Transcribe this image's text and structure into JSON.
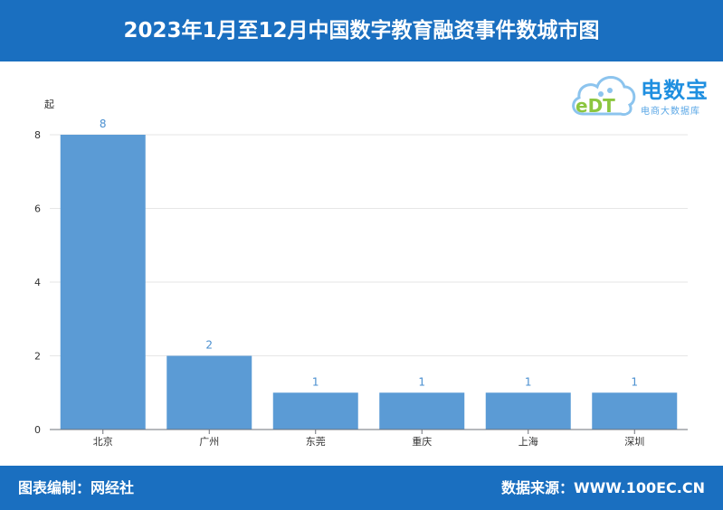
{
  "header": {
    "title": "2023年1月至12月中国数字教育融资事件数城市图"
  },
  "footer": {
    "left": "图表编制：网经社",
    "right": "数据来源：WWW.100EC.CN"
  },
  "logo": {
    "name": "电数宝",
    "subtitle": "电商大数据库",
    "mark": "eDT",
    "icon": "cloud-icon"
  },
  "colors": {
    "header_bg": "#1a6fc0",
    "bar": "#5b9bd5",
    "data_label": "#4a8fd0"
  },
  "chart_data": {
    "type": "bar",
    "ylabel": "起",
    "categories": [
      "北京",
      "广州",
      "东莞",
      "重庆",
      "上海",
      "深圳"
    ],
    "values": [
      8,
      2,
      1,
      1,
      1,
      1
    ],
    "ylim": [
      0,
      8
    ],
    "yticks": [
      0,
      2,
      4,
      6,
      8
    ],
    "grid": true,
    "data_labels": true
  }
}
